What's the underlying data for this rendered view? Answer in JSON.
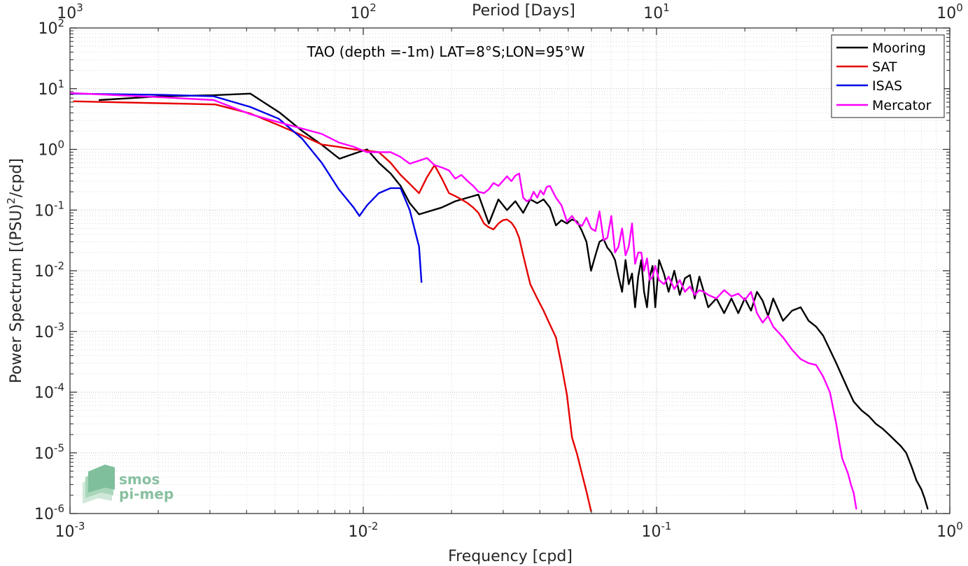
{
  "chart_data": {
    "type": "line",
    "title": "TAO (depth =-1m) LAT=8°S;LON=95°W",
    "xlabel": "Frequency [cpd]",
    "ylabel": "Power Spectrum [(PSU)^2/cpd]",
    "ylabel_parts": {
      "before": "Power Spectrum [(PSU)",
      "exponent": "2",
      "after": "/cpd]"
    },
    "top_xlabel": "Period [Days]",
    "x_scale": "log",
    "y_scale": "log",
    "xlim": [
      0.001,
      1
    ],
    "ylim": [
      1e-06,
      100
    ],
    "grid": true,
    "legend_position": "top-right",
    "x_ticks": [
      {
        "value": 0.001,
        "base": "10",
        "exp": "-3"
      },
      {
        "value": 0.01,
        "base": "10",
        "exp": "-2"
      },
      {
        "value": 0.1,
        "base": "10",
        "exp": "-1"
      },
      {
        "value": 1,
        "base": "10",
        "exp": "0"
      }
    ],
    "top_ticks": [
      {
        "value": 1000,
        "base": "10",
        "exp": "3"
      },
      {
        "value": 100,
        "base": "10",
        "exp": "2"
      },
      {
        "value": 10,
        "base": "10",
        "exp": "1"
      },
      {
        "value": 1,
        "base": "10",
        "exp": "0"
      }
    ],
    "y_ticks": [
      {
        "value": 100,
        "base": "10",
        "exp": "2"
      },
      {
        "value": 10,
        "base": "10",
        "exp": "1"
      },
      {
        "value": 1,
        "base": "10",
        "exp": "0"
      },
      {
        "value": 0.1,
        "base": "10",
        "exp": "-1"
      },
      {
        "value": 0.01,
        "base": "10",
        "exp": "-2"
      },
      {
        "value": 0.001,
        "base": "10",
        "exp": "-3"
      },
      {
        "value": 0.0001,
        "base": "10",
        "exp": "-4"
      },
      {
        "value": 1e-05,
        "base": "10",
        "exp": "-5"
      },
      {
        "value": 1e-06,
        "base": "10",
        "exp": "-6"
      }
    ],
    "series": [
      {
        "name": "Mooring",
        "color": "#000000",
        "x": [
          0.00126,
          0.00205,
          0.0031,
          0.00412,
          0.0052,
          0.0062,
          0.0072,
          0.0083,
          0.0093,
          0.0103,
          0.0113,
          0.0124,
          0.0134,
          0.0144,
          0.0155,
          0.0185,
          0.0206,
          0.0247,
          0.0268,
          0.0289,
          0.0309,
          0.033,
          0.0351,
          0.0371,
          0.0392,
          0.0412,
          0.0433,
          0.0454,
          0.0474,
          0.0495,
          0.0515,
          0.0536,
          0.0557,
          0.0577,
          0.0598,
          0.0619,
          0.0639,
          0.066,
          0.068,
          0.0701,
          0.0722,
          0.0742,
          0.0763,
          0.0784,
          0.0804,
          0.0825,
          0.0845,
          0.0866,
          0.0887,
          0.0907,
          0.0928,
          0.0948,
          0.0969,
          0.099,
          0.102,
          0.106,
          0.11,
          0.115,
          0.12,
          0.125,
          0.13,
          0.135,
          0.14,
          0.145,
          0.15,
          0.16,
          0.17,
          0.18,
          0.19,
          0.2,
          0.21,
          0.22,
          0.23,
          0.24,
          0.25,
          0.27,
          0.29,
          0.31,
          0.33,
          0.35,
          0.37,
          0.39,
          0.41,
          0.43,
          0.45,
          0.47,
          0.5,
          0.53,
          0.56,
          0.59,
          0.62,
          0.65,
          0.68,
          0.71,
          0.74,
          0.77,
          0.8,
          0.82,
          0.84
        ],
        "y": [
          6.5,
          7.5,
          7.8,
          8.3,
          4.0,
          2.0,
          1.2,
          0.7,
          0.85,
          1.0,
          0.6,
          0.4,
          0.25,
          0.13,
          0.085,
          0.11,
          0.14,
          0.18,
          0.06,
          0.15,
          0.1,
          0.14,
          0.09,
          0.15,
          0.13,
          0.15,
          0.11,
          0.056,
          0.068,
          0.06,
          0.07,
          0.065,
          0.045,
          0.03,
          0.01,
          0.018,
          0.03,
          0.033,
          0.024,
          0.02,
          0.015,
          0.008,
          0.0045,
          0.015,
          0.006,
          0.009,
          0.0025,
          0.008,
          0.015,
          0.0045,
          0.0025,
          0.008,
          0.012,
          0.0025,
          0.015,
          0.009,
          0.0045,
          0.01,
          0.004,
          0.0075,
          0.0085,
          0.0035,
          0.008,
          0.0045,
          0.0025,
          0.0035,
          0.002,
          0.0035,
          0.002,
          0.0035,
          0.0022,
          0.0045,
          0.0032,
          0.0018,
          0.0035,
          0.0015,
          0.0022,
          0.0025,
          0.0015,
          0.0012,
          0.00085,
          0.0005,
          0.0003,
          0.00018,
          0.00011,
          7e-05,
          5e-05,
          4e-05,
          3e-05,
          2.5e-05,
          2e-05,
          1.6e-05,
          1.3e-05,
          1e-05,
          6e-06,
          3.5e-06,
          2.5e-06,
          1.8e-06,
          1.2e-06
        ]
      },
      {
        "name": "SAT",
        "color": "#e60000",
        "x": [
          0.00103,
          0.00313,
          0.00412,
          0.00515,
          0.00619,
          0.00722,
          0.00825,
          0.00928,
          0.0103,
          0.0113,
          0.0124,
          0.0134,
          0.0144,
          0.0155,
          0.0165,
          0.0175,
          0.0186,
          0.0196,
          0.0206,
          0.0216,
          0.0227,
          0.0237,
          0.0247,
          0.0258,
          0.0268,
          0.0278,
          0.0289,
          0.0299,
          0.0309,
          0.032,
          0.033,
          0.034,
          0.0351,
          0.0371,
          0.0392,
          0.0412,
          0.0433,
          0.0454,
          0.0474,
          0.0495,
          0.0515,
          0.0536,
          0.0557,
          0.0577,
          0.0598
        ],
        "y": [
          6.2,
          5.5,
          3.9,
          2.5,
          1.7,
          1.2,
          1.1,
          1.0,
          0.95,
          0.9,
          0.6,
          0.38,
          0.27,
          0.19,
          0.35,
          0.55,
          0.32,
          0.19,
          0.17,
          0.15,
          0.13,
          0.11,
          0.09,
          0.06,
          0.052,
          0.048,
          0.06,
          0.068,
          0.07,
          0.062,
          0.05,
          0.035,
          0.018,
          0.006,
          0.0035,
          0.0022,
          0.0013,
          0.0008,
          0.00028,
          9e-05,
          1.8e-05,
          9.5e-06,
          4.5e-06,
          2.3e-06,
          1.1e-06
        ]
      },
      {
        "name": "ISAS",
        "color": "#0000e6",
        "x": [
          0.001,
          0.00206,
          0.00309,
          0.00412,
          0.00515,
          0.00619,
          0.00722,
          0.00825,
          0.00928,
          0.0097,
          0.0103,
          0.0113,
          0.0124,
          0.0134,
          0.0144,
          0.0155,
          0.0158
        ],
        "y": [
          8.3,
          7.9,
          7.5,
          5.0,
          3.2,
          1.5,
          0.6,
          0.22,
          0.11,
          0.08,
          0.12,
          0.19,
          0.23,
          0.23,
          0.1,
          0.025,
          0.0065
        ]
      },
      {
        "name": "Mercator",
        "color": "#ff00ff",
        "x": [
          0.001,
          0.00206,
          0.00309,
          0.00412,
          0.00515,
          0.00619,
          0.00722,
          0.00825,
          0.00928,
          0.0103,
          0.0113,
          0.0124,
          0.0134,
          0.0144,
          0.0155,
          0.0165,
          0.0175,
          0.0186,
          0.0196,
          0.0206,
          0.0216,
          0.0227,
          0.0237,
          0.0247,
          0.0258,
          0.0268,
          0.0278,
          0.0289,
          0.0299,
          0.0309,
          0.032,
          0.033,
          0.034,
          0.0351,
          0.0361,
          0.0371,
          0.0381,
          0.0392,
          0.0402,
          0.0412,
          0.0422,
          0.0433,
          0.0454,
          0.0474,
          0.0495,
          0.0515,
          0.0536,
          0.0557,
          0.0577,
          0.0598,
          0.0619,
          0.0639,
          0.066,
          0.068,
          0.0701,
          0.0722,
          0.0742,
          0.0763,
          0.0784,
          0.0804,
          0.0825,
          0.0845,
          0.0866,
          0.0887,
          0.0907,
          0.0928,
          0.0948,
          0.0969,
          0.099,
          0.102,
          0.106,
          0.11,
          0.115,
          0.12,
          0.125,
          0.13,
          0.135,
          0.14,
          0.145,
          0.15,
          0.16,
          0.17,
          0.18,
          0.19,
          0.2,
          0.21,
          0.22,
          0.23,
          0.24,
          0.25,
          0.27,
          0.29,
          0.31,
          0.33,
          0.35,
          0.37,
          0.39,
          0.41,
          0.42,
          0.43,
          0.44,
          0.45,
          0.46,
          0.47,
          0.48
        ],
        "y": [
          8.5,
          7.2,
          6.5,
          3.8,
          2.8,
          2.2,
          1.8,
          1.3,
          1.1,
          0.9,
          0.9,
          0.9,
          0.75,
          0.58,
          0.65,
          0.72,
          0.55,
          0.5,
          0.45,
          0.33,
          0.38,
          0.3,
          0.25,
          0.2,
          0.19,
          0.22,
          0.28,
          0.25,
          0.3,
          0.36,
          0.3,
          0.37,
          0.4,
          0.16,
          0.14,
          0.15,
          0.2,
          0.16,
          0.21,
          0.18,
          0.24,
          0.25,
          0.16,
          0.12,
          0.065,
          0.08,
          0.06,
          0.055,
          0.075,
          0.05,
          0.045,
          0.095,
          0.032,
          0.035,
          0.08,
          0.02,
          0.025,
          0.05,
          0.018,
          0.025,
          0.06,
          0.013,
          0.02,
          0.02,
          0.01,
          0.016,
          0.007,
          0.008,
          0.012,
          0.007,
          0.006,
          0.008,
          0.005,
          0.007,
          0.0045,
          0.0055,
          0.004,
          0.0048,
          0.0045,
          0.004,
          0.0035,
          0.0048,
          0.0038,
          0.0042,
          0.0033,
          0.0045,
          0.002,
          0.0014,
          0.0018,
          0.0012,
          0.0008,
          0.0005,
          0.00035,
          0.0003,
          0.00028,
          0.00018,
          0.0001,
          3e-05,
          1.5e-05,
          8e-06,
          6e-06,
          4.5e-06,
          3e-06,
          2.2e-06,
          1.2e-06
        ]
      }
    ]
  },
  "logo": {
    "line1": "smos",
    "line2": "pi-mep"
  }
}
